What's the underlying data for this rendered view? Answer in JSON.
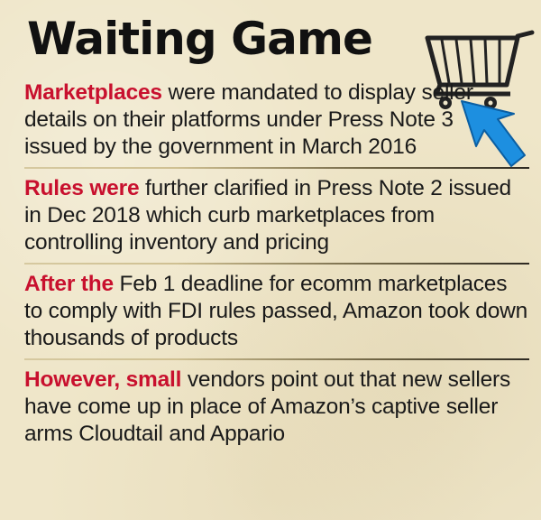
{
  "title": "Waiting Game",
  "items": [
    {
      "lead": "Marketplaces",
      "body": " were mandated to display seller details on their platforms under Press Note 3 issued by the government in March 2016"
    },
    {
      "lead": "Rules were",
      "body": " further clarified in Press Note 2 issued in Dec 2018 which curb marketplaces from controlling inventory and pricing"
    },
    {
      "lead": "After the",
      "body": " Feb 1 deadline for ecomm marketplaces to comply with FDI rules passed, Amazon took down thousands of products"
    },
    {
      "lead": "However, small",
      "body": " vendors point out that new sellers have come up in place of Amazon’s captive seller arms Cloudtail and Appario"
    }
  ],
  "icons": {
    "cart": "shopping-cart-icon",
    "cursor": "cursor-arrow-icon"
  },
  "colors": {
    "background": "#efe6c9",
    "accent": "#c8102e",
    "cursor": "#1d8fe0"
  }
}
